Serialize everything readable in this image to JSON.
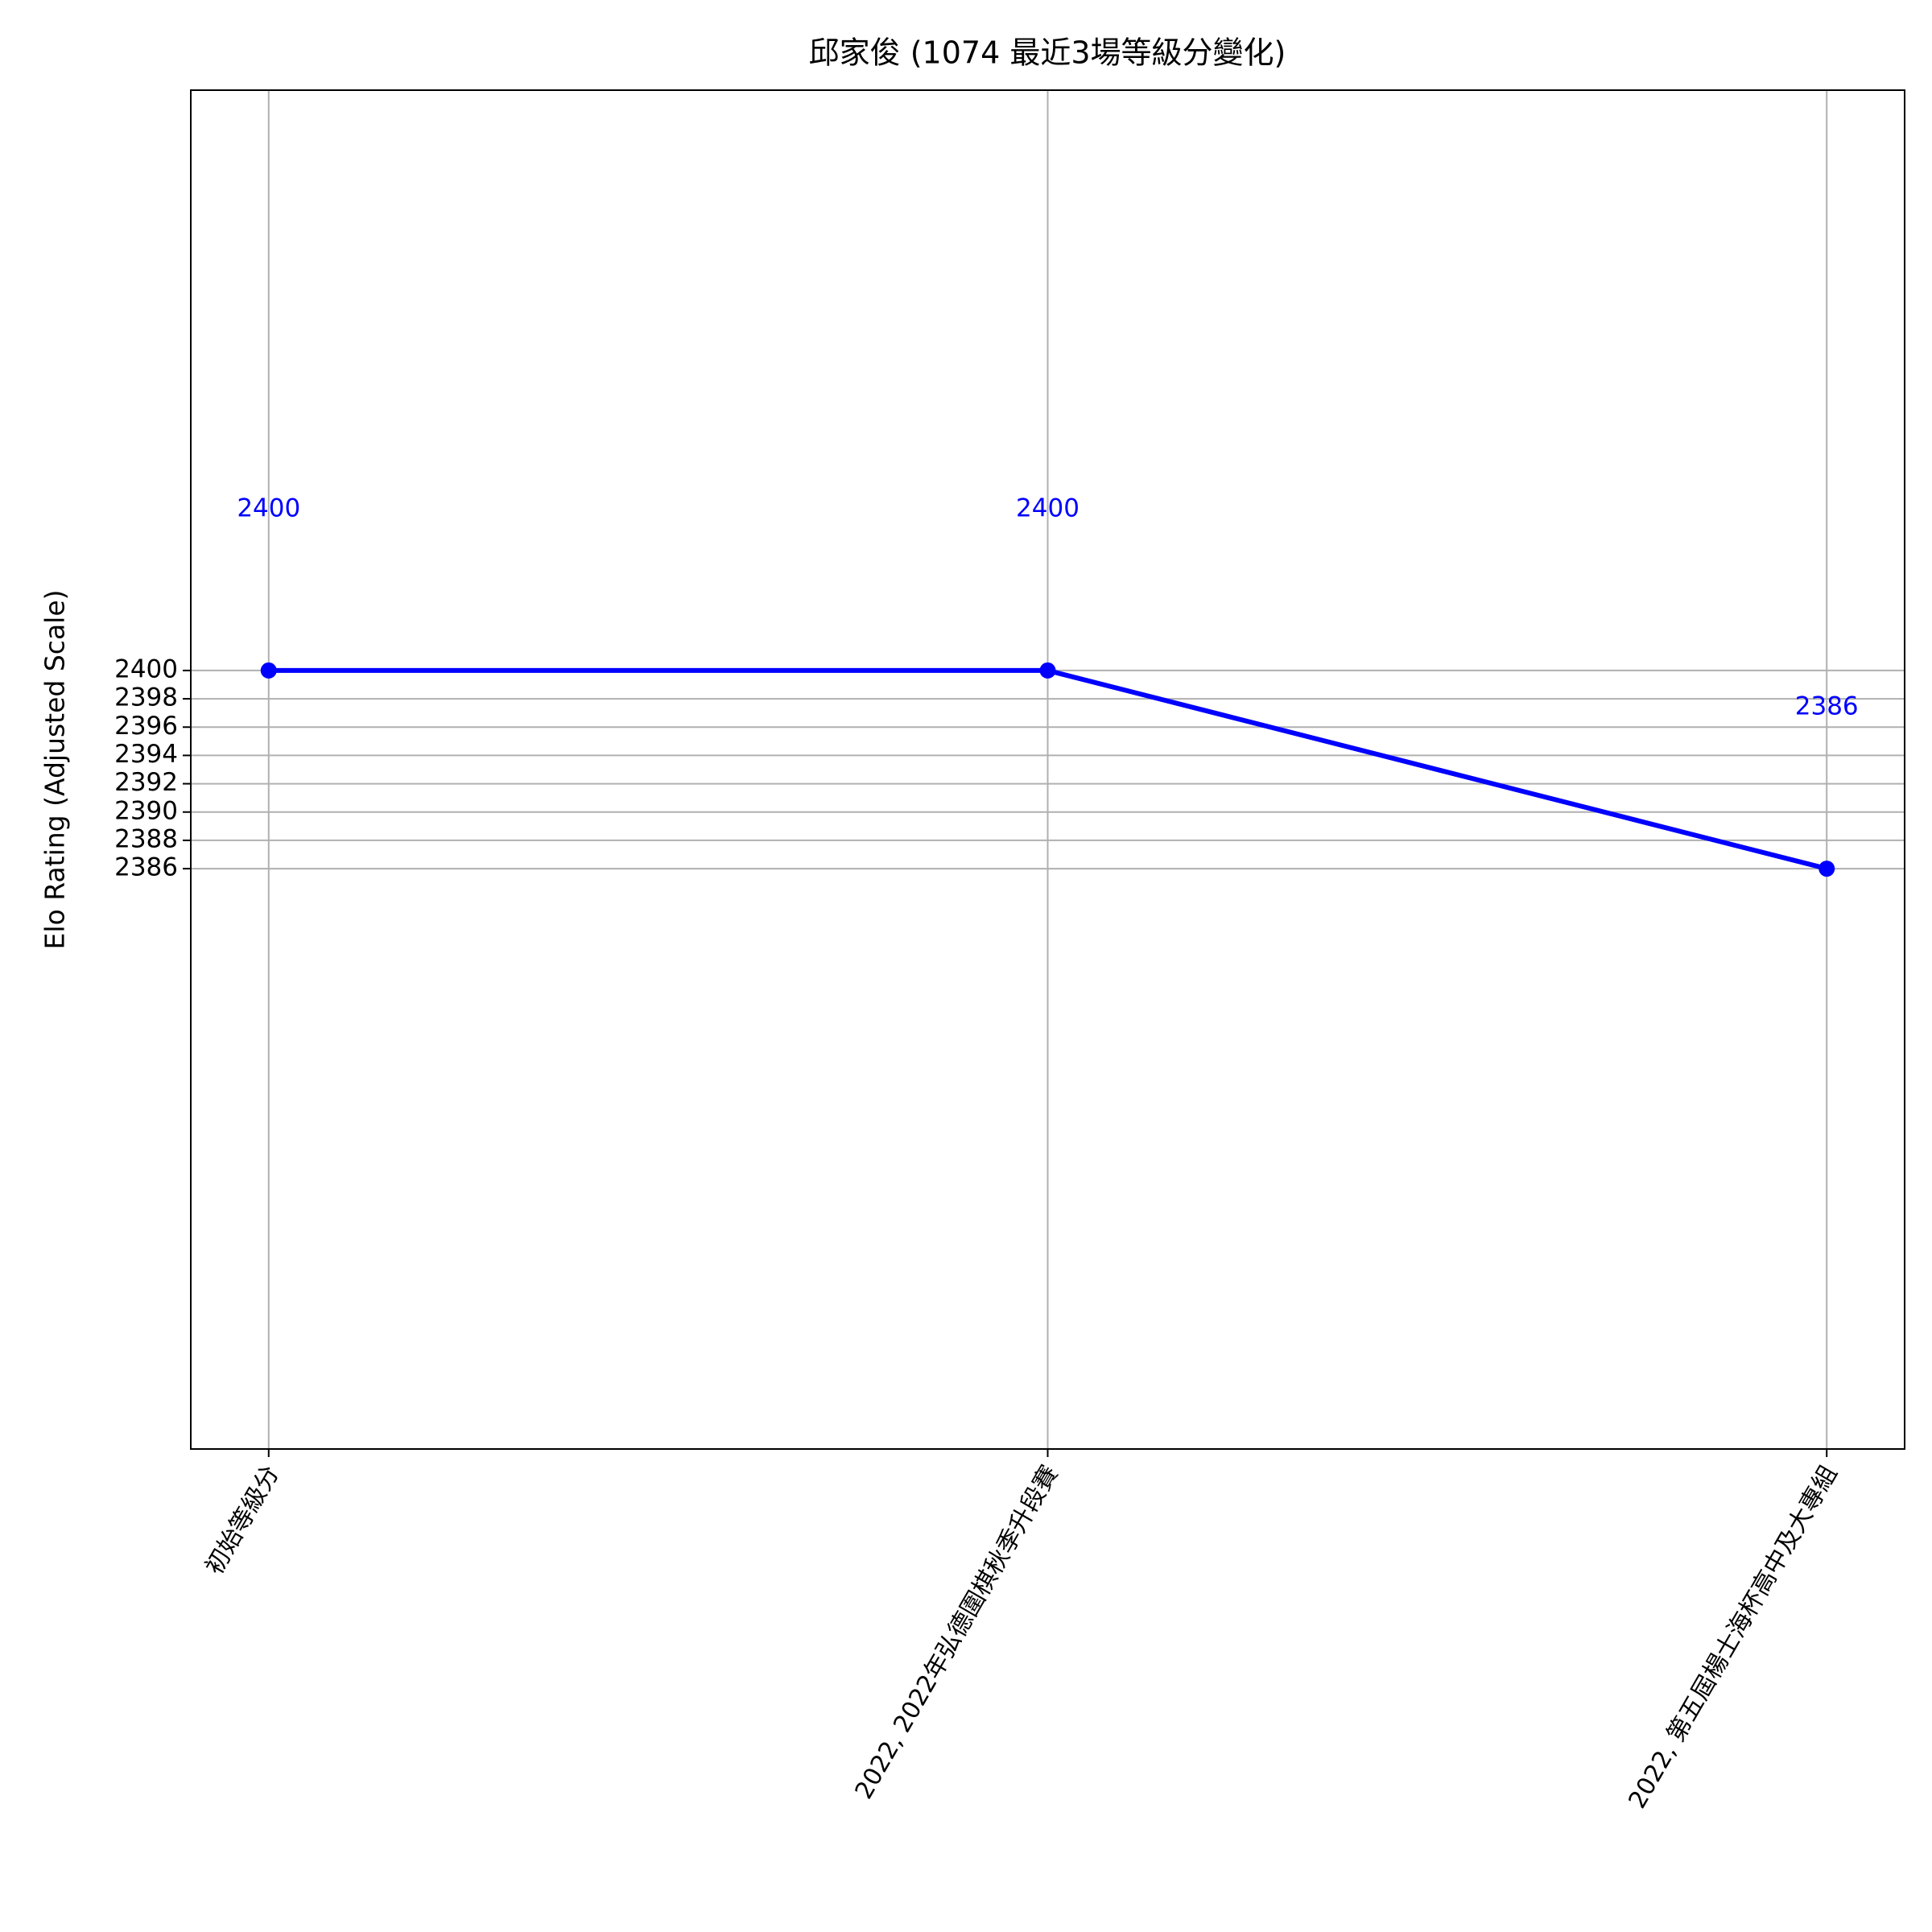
{
  "chart_data": {
    "type": "line",
    "title": "邱家俊 (1074 最近3場等級分變化)",
    "y_label": "Elo Rating (Adjusted Scale)",
    "categories": [
      "初始等級分",
      "2022, 2022年弘德圍棋秋季升段賽",
      "2022, 第五屆楊士海杯高中及大專組"
    ],
    "series": [
      {
        "name": "Elo",
        "color": "#0000ff",
        "values": [
          2400,
          2400,
          2386
        ]
      }
    ],
    "ylim": [
      2345,
      2441
    ],
    "yticks": [
      2386,
      2388,
      2390,
      2392,
      2394,
      2396,
      2398,
      2400
    ],
    "grid": true
  }
}
